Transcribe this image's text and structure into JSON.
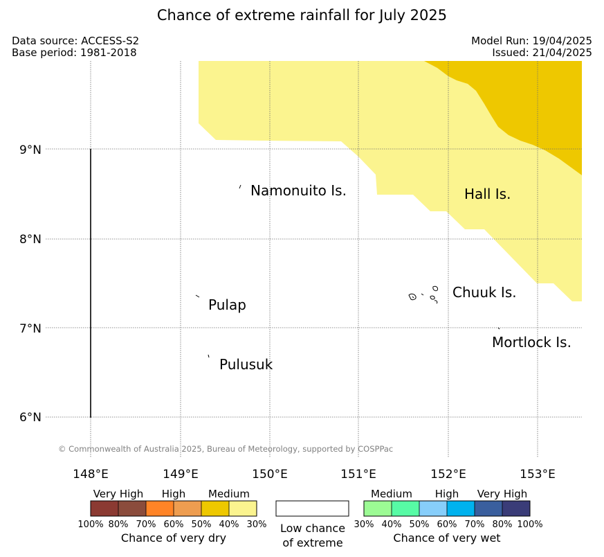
{
  "title": "Chance of extreme rainfall for July 2025",
  "data_source": "Data source: ACCESS-S2",
  "base_period": "Base period: 1981-2018",
  "model_run": "Model Run: 19/04/2025",
  "issued": "Issued: 21/04/2025",
  "credit": "© Commonwealth of Australia 2025, Bureau of Meteorology, supported by COSPPac",
  "axes": {
    "lat_labels": [
      "9°N",
      "8°N",
      "7°N",
      "6°N"
    ],
    "lon_labels": [
      "148°E",
      "149°E",
      "150°E",
      "151°E",
      "152°E",
      "153°E"
    ]
  },
  "islands": {
    "namonuito": "Namonuito Is.",
    "hall": "Hall Is.",
    "pulap": "Pulap",
    "chuuk": "Chuuk Is.",
    "mortlock": "Mortlock Is.",
    "pulusuk": "Pulusuk"
  },
  "colors": {
    "dry_very_high": [
      "#8b3a32",
      "#8b4c3c"
    ],
    "dry_high": [
      "#ff8427",
      "#ee9d50"
    ],
    "dry_medium": [
      "#eec800",
      "#fbf48f"
    ],
    "wet_medium": [
      "#9cfb94",
      "#57fba5"
    ],
    "wet_high": [
      "#87cefa",
      "#00b2ee"
    ],
    "wet_very_high": [
      "#3a5f9e",
      "#3a3c78"
    ]
  },
  "legend": {
    "dry": {
      "cat_very_high": "Very High",
      "cat_high": "High",
      "cat_medium": "Medium",
      "pcts": [
        "100%",
        "80%",
        "70%",
        "60%",
        "50%",
        "40%",
        "30%"
      ],
      "caption": "Chance of very dry"
    },
    "low": {
      "line1": "Low chance",
      "line2": "of extreme"
    },
    "wet": {
      "cat_medium": "Medium",
      "cat_high": "High",
      "cat_very_high": "Very High",
      "pcts": [
        "30%",
        "40%",
        "50%",
        "60%",
        "70%",
        "80%",
        "100%"
      ],
      "caption": "Chance of very wet"
    }
  }
}
